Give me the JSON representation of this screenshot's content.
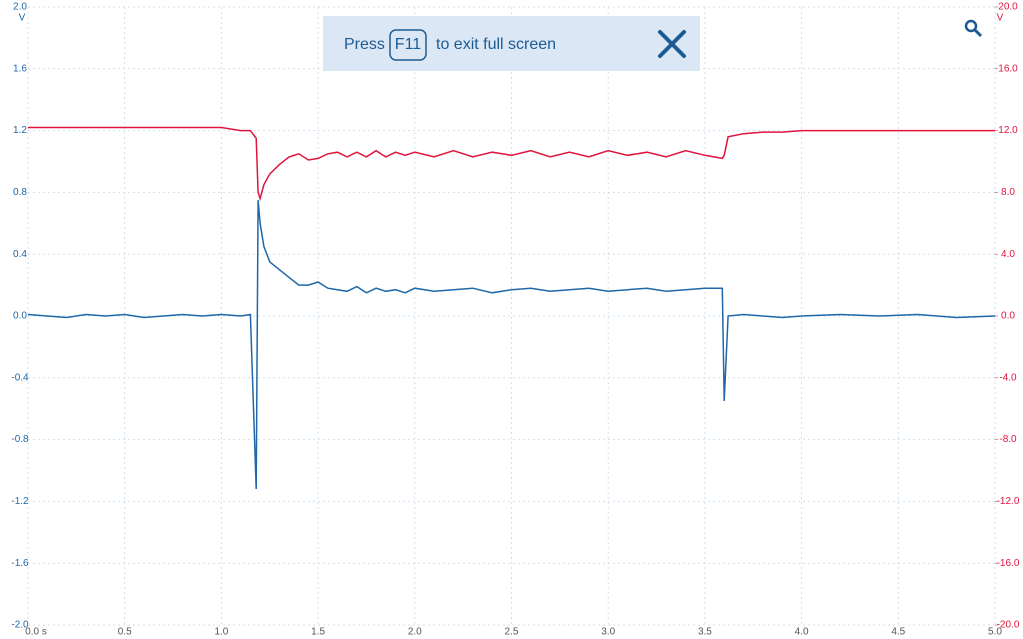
{
  "chart_data": {
    "type": "line",
    "y_label": "V",
    "y2_label": "V",
    "x": [
      0,
      0.1,
      0.2,
      0.3,
      0.4,
      0.5,
      0.6,
      0.7,
      0.8,
      0.9,
      1.0,
      1.1,
      1.15,
      1.18,
      1.19,
      1.2,
      1.22,
      1.25,
      1.3,
      1.35,
      1.4,
      1.45,
      1.5,
      1.55,
      1.6,
      1.65,
      1.7,
      1.75,
      1.8,
      1.85,
      1.9,
      1.95,
      2.0,
      2.1,
      2.2,
      2.3,
      2.4,
      2.5,
      2.6,
      2.7,
      2.8,
      2.9,
      3.0,
      3.1,
      3.2,
      3.3,
      3.4,
      3.5,
      3.59,
      3.6,
      3.62,
      3.7,
      3.8,
      3.9,
      4.0,
      4.2,
      4.4,
      4.6,
      4.8,
      5.0
    ],
    "series": [
      {
        "color": "#1f67a8",
        "axis": "y",
        "values": [
          0.01,
          0.0,
          -0.01,
          0.01,
          0.0,
          0.01,
          -0.01,
          0.0,
          0.01,
          0.0,
          0.01,
          0.0,
          0.01,
          -1.12,
          0.75,
          0.6,
          0.45,
          0.35,
          0.3,
          0.25,
          0.2,
          0.2,
          0.22,
          0.18,
          0.17,
          0.16,
          0.19,
          0.15,
          0.18,
          0.16,
          0.17,
          0.15,
          0.18,
          0.16,
          0.17,
          0.18,
          0.15,
          0.17,
          0.18,
          0.16,
          0.17,
          0.18,
          0.16,
          0.17,
          0.18,
          0.16,
          0.17,
          0.18,
          0.18,
          -0.55,
          0.0,
          0.01,
          0.0,
          -0.01,
          0.0,
          0.01,
          0.0,
          0.01,
          -0.01,
          0.0
        ]
      },
      {
        "color": "#e0143c",
        "axis": "y2",
        "values": [
          12.2,
          12.2,
          12.2,
          12.2,
          12.2,
          12.2,
          12.2,
          12.2,
          12.2,
          12.2,
          12.2,
          12.0,
          12.0,
          11.5,
          8.0,
          7.6,
          8.5,
          9.2,
          9.8,
          10.3,
          10.5,
          10.1,
          10.2,
          10.5,
          10.6,
          10.3,
          10.6,
          10.3,
          10.7,
          10.3,
          10.6,
          10.4,
          10.6,
          10.3,
          10.7,
          10.3,
          10.6,
          10.4,
          10.7,
          10.3,
          10.6,
          10.3,
          10.7,
          10.4,
          10.6,
          10.3,
          10.7,
          10.4,
          10.2,
          10.4,
          11.6,
          11.8,
          11.9,
          11.9,
          12.0,
          12.0,
          12.0,
          12.0,
          12.0,
          12.0
        ]
      }
    ],
    "xlim": [
      0,
      5
    ],
    "xticks": [
      {
        "value": 0,
        "label": "0.0 s"
      },
      0.5,
      {
        "value": 1,
        "label": "1.0"
      },
      1.5,
      {
        "value": 2,
        "label": "2.0"
      },
      2.5,
      {
        "value": 3,
        "label": "3.0"
      },
      3.5,
      {
        "value": 4,
        "label": "4.0"
      },
      4.5,
      {
        "value": 5,
        "label": "5.0"
      }
    ],
    "ylim": [
      -2,
      2
    ],
    "yticks": [
      {
        "value": -2,
        "label": "-2.0"
      },
      -1.6,
      -1.2,
      -0.8,
      -0.4,
      {
        "value": 0,
        "label": "0.0"
      },
      0.4,
      0.8,
      1.2,
      1.6,
      {
        "value": 2,
        "label": "2.0"
      }
    ],
    "y2lim": [
      -20,
      20
    ],
    "y2ticks": [
      {
        "value": -20,
        "label": "-20.0"
      },
      {
        "value": -16,
        "label": "-16.0"
      },
      {
        "value": -12,
        "label": "-12.0"
      },
      {
        "value": -8,
        "label": "-8.0"
      },
      {
        "value": -4,
        "label": "-4.0"
      },
      {
        "value": 0,
        "label": "0.0"
      },
      {
        "value": 4,
        "label": "4.0"
      },
      {
        "value": 8,
        "label": "8.0"
      },
      {
        "value": 12,
        "label": "12.0"
      },
      {
        "value": 16,
        "label": "16.0"
      },
      {
        "value": 20,
        "label": "20.0"
      }
    ],
    "grid": true
  },
  "banner": {
    "press": "Press",
    "key": "F11",
    "message": "to exit full screen"
  }
}
